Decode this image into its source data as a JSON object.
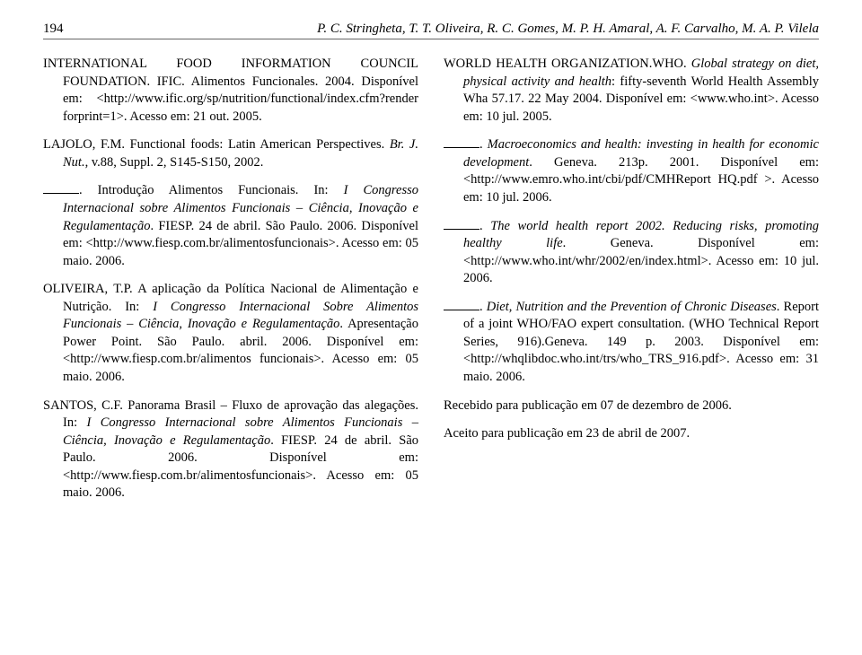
{
  "header": {
    "page_number": "194",
    "authors": "P. C. Stringheta, T. T. Oliveira, R. C. Gomes, M. P. H. Amaral, A. F. Carvalho, M. A. P. Vilela"
  },
  "left_column": {
    "ref1": "INTERNATIONAL FOOD INFORMATION COUNCIL FOUNDATION. IFIC. Alimentos Funcionales. 2004. Disponível em: <http://www.ific.org/sp/nutrition/functional/index.cfm?render forprint=1>. Acesso em: 21 out. 2005.",
    "ref2_a": "LAJOLO, F.M. Functional foods: Latin American Perspectives. ",
    "ref2_b": "Br. J. Nut.",
    "ref2_c": ", v.88, Suppl. 2, S145-S150, 2002.",
    "ref3_a": ". Introdução Alimentos Funcionais. In: ",
    "ref3_b": "I Congresso Internacional sobre Alimentos Funcionais – Ciência, Inovação e Regulamentação",
    "ref3_c": ". FIESP. 24 de abril. São Paulo. 2006. Disponível em: <http://www.fiesp.com.br/alimentosfuncionais>. Acesso em: 05 maio. 2006.",
    "ref4_a": "OLIVEIRA, T.P. A aplicação da Política Nacional de Alimentação e Nutrição. In: ",
    "ref4_b": "I Congresso Internacional Sobre Alimentos Funcionais – Ciência, Inovação e Regulamentação",
    "ref4_c": ". Apresentação Power Point. São Paulo. abril. 2006. Disponível em: <http://www.fiesp.com.br/alimentos funcionais>. Acesso em: 05 maio. 2006.",
    "ref5_a": "SANTOS, C.F. Panorama Brasil – Fluxo de aprovação das alegações. In: ",
    "ref5_b": "I Congresso Internacional sobre Alimentos Funcionais – Ciência, Inovação e Regulamentação",
    "ref5_c": ". FIESP. 24 de abril. São Paulo. 2006. Disponível em: <http://www.fiesp.com.br/alimentosfuncionais>. Acesso em: 05 maio. 2006."
  },
  "right_column": {
    "ref1_a": "WORLD HEALTH ORGANIZATION.WHO. ",
    "ref1_b": "Global strategy on diet, physical activity and health",
    "ref1_c": ": fifty-seventh World Health Assembly Wha 57.17. 22 May 2004. Disponível em: <www.who.int>. Acesso em: 10 jul. 2005.",
    "ref2_a": ". ",
    "ref2_b": "Macroeconomics and health: investing in health for economic development",
    "ref2_c": ". Geneva. 213p. 2001. Disponível em: <http://www.emro.who.int/cbi/pdf/CMHReport HQ.pdf >. Acesso em: 10 jul. 2006.",
    "ref3_a": ". ",
    "ref3_b": "The world health report 2002. Reducing risks, promoting healthy life",
    "ref3_c": ". Geneva. Disponível em: <http://www.who.int/whr/2002/en/index.html>. Acesso em: 10 jul. 2006.",
    "ref4_a": ". ",
    "ref4_b": "Diet, Nutrition and the Prevention of Chronic Diseases",
    "ref4_c": ". Report of a joint WHO/FAO expert consultation. (WHO Technical Report Series, 916).Geneva. 149 p. 2003. Disponível em: <http://whqlibdoc.who.int/trs/who_TRS_916.pdf>. Acesso em: 31 maio. 2006.",
    "received": "Recebido para publicação em 07 de dezembro de 2006.",
    "accepted": "Aceito para publicação em 23 de abril de 2007."
  }
}
